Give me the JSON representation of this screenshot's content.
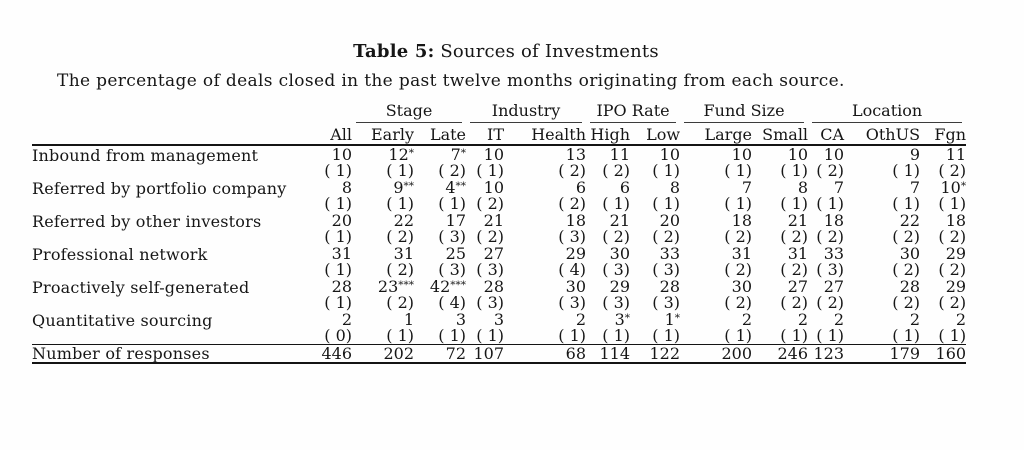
{
  "title": {
    "prefix": "Table 5:",
    "rest": " Sources of Investments"
  },
  "subtitle": "The percentage of deals closed in the past twelve months originating from each source.",
  "colors": {
    "text": "#161616",
    "background": "#fefefe",
    "rule": "#141414"
  },
  "table": {
    "groups": [
      {
        "label": "",
        "cols": 2,
        "rule": false
      },
      {
        "label": "Stage",
        "cols": 2,
        "rule": true
      },
      {
        "label": "Industry",
        "cols": 2,
        "rule": true
      },
      {
        "label": "IPO Rate",
        "cols": 2,
        "rule": true
      },
      {
        "label": "Fund Size",
        "cols": 2,
        "rule": true
      },
      {
        "label": "Location",
        "cols": 3,
        "rule": true
      }
    ],
    "columns": [
      "All",
      "Early",
      "Late",
      "IT",
      "Health",
      "High",
      "Low",
      "Large",
      "Small",
      "CA",
      "OthUS",
      "Fgn"
    ],
    "rows": [
      {
        "label": "Inbound from management",
        "values": [
          "10",
          "12*",
          "7*",
          "10",
          "13",
          "11",
          "10",
          "10",
          "10",
          "10",
          "9",
          "11"
        ],
        "se": [
          "( 1)",
          "( 1)",
          "( 2)",
          "( 1)",
          "( 2)",
          "( 2)",
          "( 1)",
          "( 1)",
          "( 1)",
          "( 2)",
          "( 1)",
          "( 2)"
        ]
      },
      {
        "label": "Referred by portfolio company",
        "values": [
          "8",
          "9**",
          "4**",
          "10",
          "6",
          "6",
          "8",
          "7",
          "8",
          "7",
          "7",
          "10*"
        ],
        "se": [
          "( 1)",
          "( 1)",
          "( 1)",
          "( 2)",
          "( 2)",
          "( 1)",
          "( 1)",
          "( 1)",
          "( 1)",
          "( 1)",
          "( 1)",
          "( 1)"
        ]
      },
      {
        "label": "Referred by other investors",
        "values": [
          "20",
          "22",
          "17",
          "21",
          "18",
          "21",
          "20",
          "18",
          "21",
          "18",
          "22",
          "18"
        ],
        "se": [
          "( 1)",
          "( 2)",
          "( 3)",
          "( 2)",
          "( 3)",
          "( 2)",
          "( 2)",
          "( 2)",
          "( 2)",
          "( 2)",
          "( 2)",
          "( 2)"
        ]
      },
      {
        "label": "Professional network",
        "values": [
          "31",
          "31",
          "25",
          "27",
          "29",
          "30",
          "33",
          "31",
          "31",
          "33",
          "30",
          "29"
        ],
        "se": [
          "( 1)",
          "( 2)",
          "( 3)",
          "( 3)",
          "( 4)",
          "( 3)",
          "( 3)",
          "( 2)",
          "( 2)",
          "( 3)",
          "( 2)",
          "( 2)"
        ]
      },
      {
        "label": "Proactively self-generated",
        "values": [
          "28",
          "23***",
          "42***",
          "28",
          "30",
          "29",
          "28",
          "30",
          "27",
          "27",
          "28",
          "29"
        ],
        "se": [
          "( 1)",
          "( 2)",
          "( 4)",
          "( 3)",
          "( 3)",
          "( 3)",
          "( 3)",
          "( 2)",
          "( 2)",
          "( 2)",
          "( 2)",
          "( 2)"
        ]
      },
      {
        "label": "Quantitative sourcing",
        "values": [
          "2",
          "1",
          "3",
          "3",
          "2",
          "3*",
          "1*",
          "2",
          "2",
          "2",
          "2",
          "2"
        ],
        "se": [
          "( 0)",
          "( 1)",
          "( 1)",
          "( 1)",
          "( 1)",
          "( 1)",
          "( 1)",
          "( 1)",
          "( 1)",
          "( 1)",
          "( 1)",
          "( 1)"
        ]
      }
    ],
    "footer": {
      "label": "Number of responses",
      "values": [
        "446",
        "202",
        "72",
        "107",
        "68",
        "114",
        "122",
        "200",
        "246",
        "123",
        "179",
        "160"
      ]
    }
  }
}
